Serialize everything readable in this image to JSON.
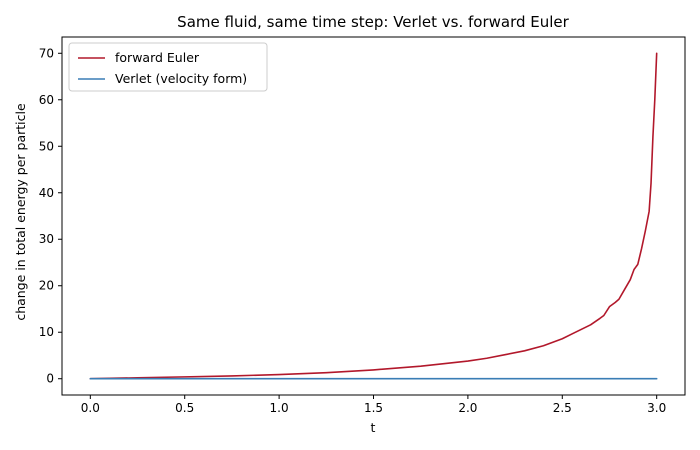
{
  "chart_data": {
    "type": "line",
    "title": "Same fluid, same time step: Verlet vs. forward Euler",
    "xlabel": "t",
    "ylabel": "change in total energy per particle",
    "xlim": [
      -0.15,
      3.15
    ],
    "ylim": [
      -3.5,
      73.5
    ],
    "xticks": [
      0.0,
      0.5,
      1.0,
      1.5,
      2.0,
      2.5,
      3.0
    ],
    "xtick_labels": [
      "0.0",
      "0.5",
      "1.0",
      "1.5",
      "2.0",
      "2.5",
      "3.0"
    ],
    "yticks": [
      0,
      10,
      20,
      30,
      40,
      50,
      60,
      70
    ],
    "ytick_labels": [
      "0",
      "10",
      "20",
      "30",
      "40",
      "50",
      "60",
      "70"
    ],
    "grid": false,
    "legend_position": "upper-left",
    "series": [
      {
        "name": "forward Euler",
        "color": "#b2182b",
        "x": [
          0.0,
          0.25,
          0.5,
          0.75,
          1.0,
          1.25,
          1.5,
          1.75,
          2.0,
          2.1,
          2.2,
          2.3,
          2.4,
          2.5,
          2.55,
          2.6,
          2.65,
          2.7,
          2.72,
          2.75,
          2.78,
          2.8,
          2.83,
          2.86,
          2.88,
          2.9,
          2.92,
          2.94,
          2.96,
          2.97,
          2.98,
          2.99,
          3.0
        ],
        "y": [
          0.0,
          0.2,
          0.4,
          0.6,
          0.9,
          1.3,
          1.9,
          2.7,
          3.8,
          4.4,
          5.2,
          6.0,
          7.1,
          8.6,
          9.6,
          10.6,
          11.6,
          13.0,
          13.6,
          15.5,
          16.4,
          17.1,
          19.2,
          21.3,
          23.5,
          24.6,
          28.0,
          31.8,
          36.0,
          42.0,
          52.0,
          60.0,
          70.0
        ]
      },
      {
        "name": "Verlet (velocity form)",
        "color": "#3a7db5",
        "x": [
          0.0,
          0.5,
          1.0,
          1.5,
          2.0,
          2.5,
          3.0
        ],
        "y": [
          0.0,
          0.0,
          0.0,
          0.0,
          0.0,
          0.0,
          0.0
        ]
      }
    ]
  }
}
